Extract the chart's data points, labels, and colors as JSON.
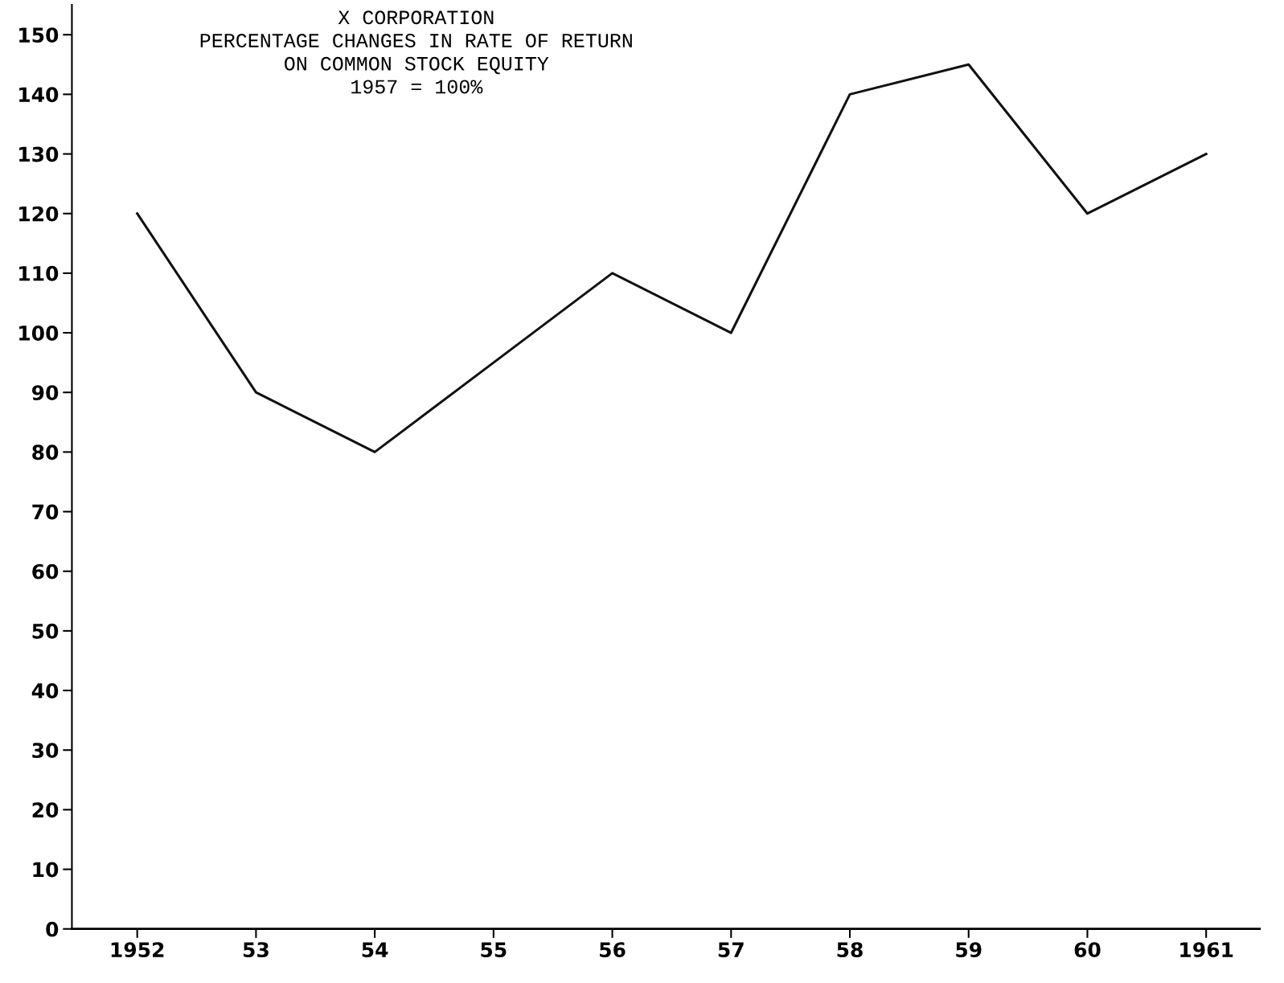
{
  "chart_data": {
    "type": "line",
    "title": "X CORPORATION\nPERCENTAGE CHANGES IN RATE OF RETURN\nON COMMON STOCK EQUITY\n1957 = 100%",
    "x": [
      1952,
      1953,
      1954,
      1955,
      1956,
      1957,
      1958,
      1959,
      1960,
      1961
    ],
    "series": [
      {
        "color": "#111111",
        "values": [
          120,
          90,
          80,
          95,
          110,
          100,
          140,
          145,
          120,
          130
        ]
      }
    ],
    "xlim": [
      1951.45,
      1961.45
    ],
    "xticks": [
      {
        "value": 1952,
        "label": "1952"
      },
      {
        "value": 1953,
        "label": "53"
      },
      {
        "value": 1954,
        "label": "54"
      },
      {
        "value": 1955,
        "label": "55"
      },
      {
        "value": 1956,
        "label": "56"
      },
      {
        "value": 1957,
        "label": "57"
      },
      {
        "value": 1958,
        "label": "58"
      },
      {
        "value": 1959,
        "label": "59"
      },
      {
        "value": 1960,
        "label": "60"
      },
      {
        "value": 1961,
        "label": "1961"
      }
    ],
    "ylim": [
      0,
      155
    ],
    "yticks": [
      0,
      10,
      20,
      30,
      40,
      50,
      60,
      70,
      80,
      90,
      100,
      110,
      120,
      130,
      140,
      150
    ],
    "grid": false,
    "legend": false,
    "marker": "none",
    "line_style": "solid"
  }
}
